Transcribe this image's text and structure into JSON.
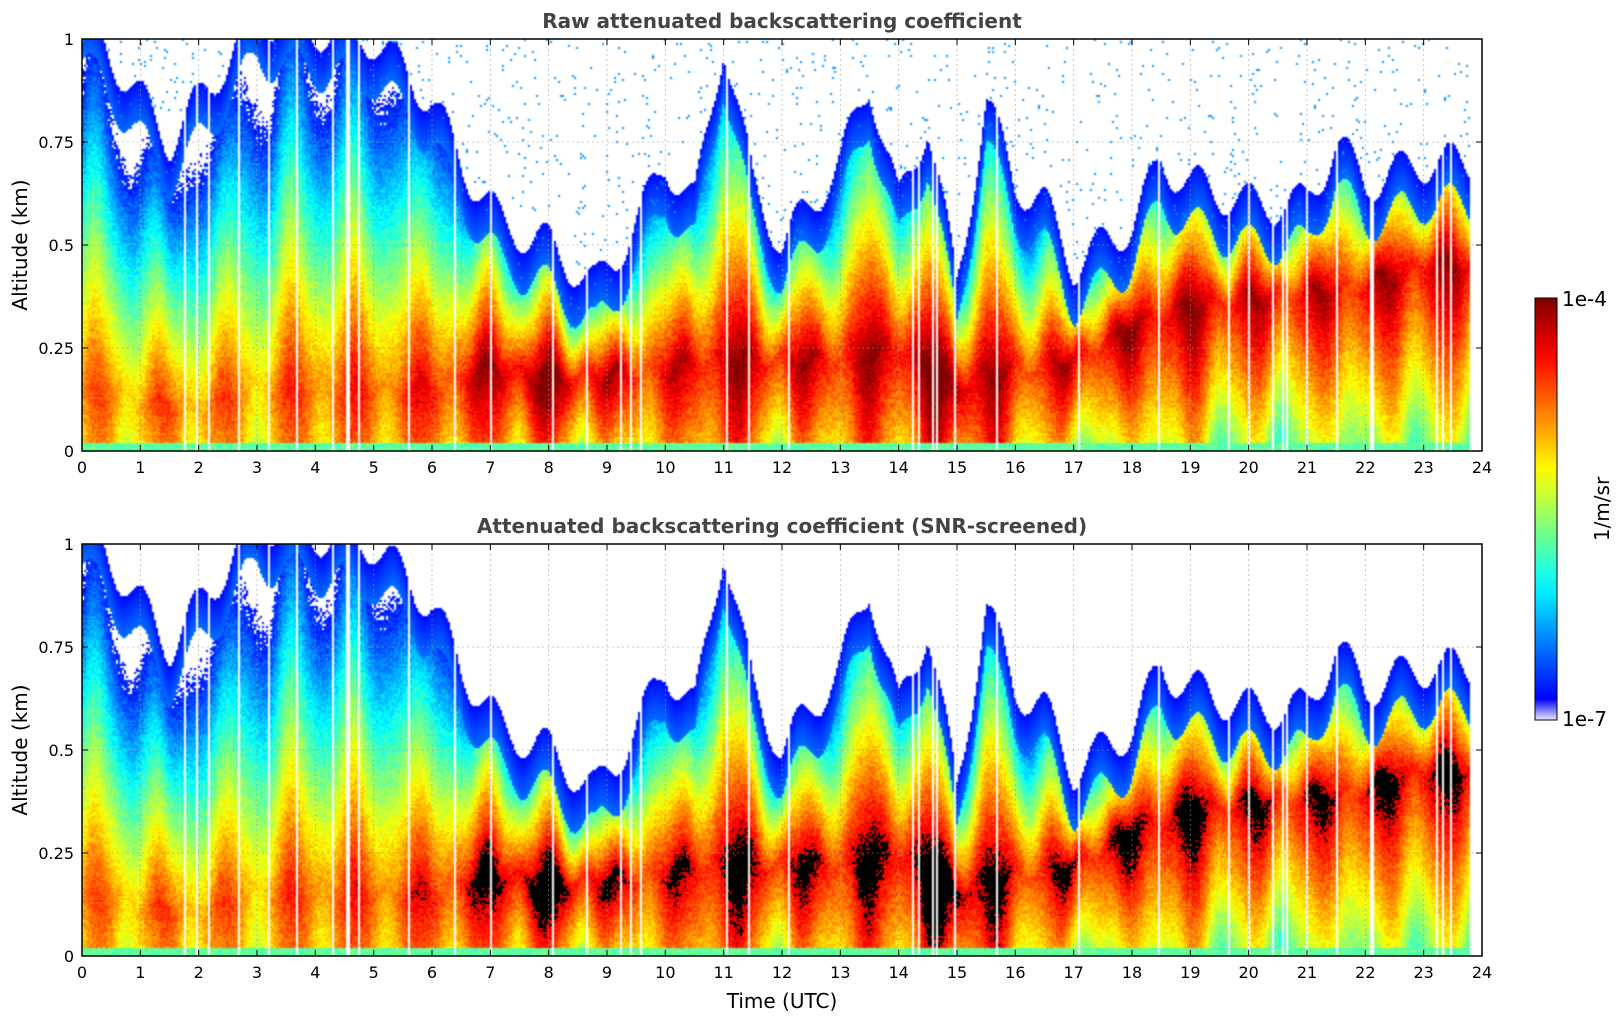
{
  "chart_data": [
    {
      "type": "heatmap",
      "title": "Raw attenuated backscattering coefficient",
      "xlabel": "",
      "ylabel": "Altitude (km)",
      "xlim": [
        0,
        24
      ],
      "ylim": [
        0,
        1
      ],
      "x_ticks": [
        "0",
        "1",
        "2",
        "3",
        "4",
        "5",
        "6",
        "7",
        "8",
        "9",
        "10",
        "11",
        "12",
        "13",
        "14",
        "15",
        "16",
        "17",
        "18",
        "19",
        "20",
        "21",
        "22",
        "23",
        "24"
      ],
      "y_ticks": [
        "0",
        "0.25",
        "0.5",
        "0.75",
        "1"
      ],
      "grid": true,
      "screened": false
    },
    {
      "type": "heatmap",
      "title": "Attenuated backscattering coefficient (SNR-screened)",
      "xlabel": "Time (UTC)",
      "ylabel": "Altitude (km)",
      "xlim": [
        0,
        24
      ],
      "ylim": [
        0,
        1
      ],
      "x_ticks": [
        "0",
        "1",
        "2",
        "3",
        "4",
        "5",
        "6",
        "7",
        "8",
        "9",
        "10",
        "11",
        "12",
        "13",
        "14",
        "15",
        "16",
        "17",
        "18",
        "19",
        "20",
        "21",
        "22",
        "23",
        "24"
      ],
      "y_ticks": [
        "0",
        "0.25",
        "0.5",
        "0.75",
        "1"
      ],
      "grid": true,
      "screened": true
    }
  ],
  "colorbar": {
    "label": "1/m/sr",
    "max_label": "1e-4",
    "min_label": "1e-7",
    "scale": "log",
    "colormap": "jet"
  },
  "profile": {
    "layer_top_km": [
      [
        0,
        0.95
      ],
      [
        0.8,
        0.8
      ],
      [
        1.5,
        0.65
      ],
      [
        2.5,
        0.85
      ],
      [
        3,
        0.95
      ],
      [
        4,
        0.92
      ],
      [
        5,
        0.9
      ],
      [
        6,
        0.75
      ],
      [
        6.5,
        0.6
      ],
      [
        7.2,
        0.45
      ],
      [
        8,
        0.4
      ],
      [
        8.8,
        0.3
      ],
      [
        9.5,
        0.45
      ],
      [
        10,
        0.6
      ],
      [
        10.5,
        0.5
      ],
      [
        11,
        0.9
      ],
      [
        11.5,
        0.55
      ],
      [
        12,
        0.4
      ],
      [
        13,
        0.6
      ],
      [
        13.5,
        0.8
      ],
      [
        14,
        0.5
      ],
      [
        14.5,
        0.7
      ],
      [
        15,
        0.3
      ],
      [
        15.5,
        0.75
      ],
      [
        16,
        0.55
      ],
      [
        16.5,
        0.5
      ],
      [
        17,
        0.35
      ],
      [
        18,
        0.45
      ],
      [
        18.5,
        0.6
      ],
      [
        19,
        0.55
      ],
      [
        20,
        0.5
      ],
      [
        21,
        0.5
      ],
      [
        21.5,
        0.65
      ],
      [
        22,
        0.55
      ],
      [
        23,
        0.6
      ],
      [
        23.8,
        0.6
      ]
    ],
    "peak_km": [
      [
        0,
        0.15
      ],
      [
        1,
        0.12
      ],
      [
        2,
        0.1
      ],
      [
        3,
        0.15
      ],
      [
        4,
        0.15
      ],
      [
        5,
        0.15
      ],
      [
        6,
        0.15
      ],
      [
        7,
        0.2
      ],
      [
        8,
        0.17
      ],
      [
        9,
        0.18
      ],
      [
        10,
        0.2
      ],
      [
        11,
        0.22
      ],
      [
        12,
        0.22
      ],
      [
        13,
        0.22
      ],
      [
        14,
        0.25
      ],
      [
        15,
        0.15
      ],
      [
        16,
        0.2
      ],
      [
        17,
        0.22
      ],
      [
        18,
        0.3
      ],
      [
        19,
        0.35
      ],
      [
        20,
        0.37
      ],
      [
        21,
        0.38
      ],
      [
        22,
        0.4
      ],
      [
        23,
        0.45
      ],
      [
        23.8,
        0.45
      ]
    ],
    "peak_log10": [
      [
        0,
        -4.8
      ],
      [
        2,
        -4.7
      ],
      [
        3,
        -4.8
      ],
      [
        4,
        -4.6
      ],
      [
        5,
        -4.6
      ],
      [
        6,
        -4.5
      ],
      [
        7,
        -4.2
      ],
      [
        8,
        -4.1
      ],
      [
        9,
        -4.3
      ],
      [
        10,
        -4.4
      ],
      [
        11,
        -4.2
      ],
      [
        12,
        -4.3
      ],
      [
        13,
        -4.3
      ],
      [
        14,
        -4.2
      ],
      [
        15,
        -4.0
      ],
      [
        16,
        -4.4
      ],
      [
        17,
        -4.3
      ],
      [
        18,
        -4.2
      ],
      [
        19,
        -4.2
      ],
      [
        20,
        -4.3
      ],
      [
        21,
        -4.3
      ],
      [
        22,
        -4.3
      ],
      [
        23,
        -4.2
      ],
      [
        23.8,
        -4.3
      ]
    ]
  }
}
